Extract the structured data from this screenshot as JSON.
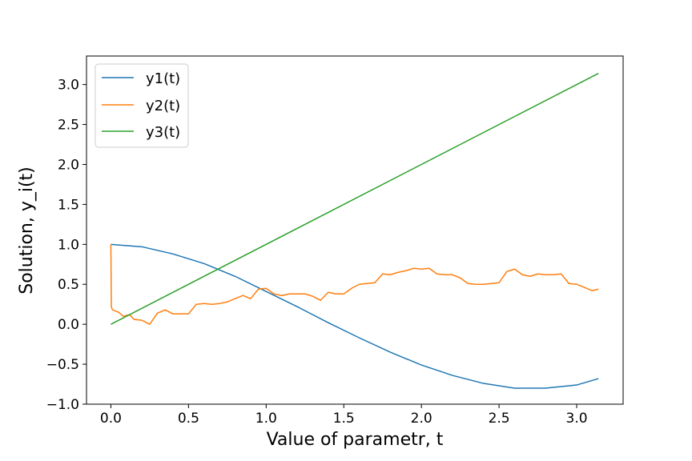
{
  "chart_data": {
    "type": "line",
    "title": "",
    "xlabel": "Value of parametr, t",
    "ylabel": "Solution, y_i(t)",
    "xlim": [
      -0.157,
      3.299
    ],
    "ylim": [
      -1.0,
      3.357
    ],
    "xticks": [
      0.0,
      0.5,
      1.0,
      1.5,
      2.0,
      2.5,
      3.0
    ],
    "xtick_labels": [
      "0.0",
      "0.5",
      "1.0",
      "1.5",
      "2.0",
      "2.5",
      "3.0"
    ],
    "yticks": [
      -1.0,
      -0.5,
      0.0,
      0.5,
      1.0,
      1.5,
      2.0,
      2.5,
      3.0
    ],
    "ytick_labels": [
      "−1.0",
      "−0.5",
      "0.0",
      "0.5",
      "1.0",
      "1.5",
      "2.0",
      "2.5",
      "3.0"
    ],
    "grid": false,
    "legend_position": "top-left",
    "series": [
      {
        "name": "y1(t)",
        "color": "#1f77b4",
        "x": [
          0.0,
          0.2,
          0.4,
          0.6,
          0.8,
          1.0,
          1.2,
          1.4,
          1.6,
          1.8,
          2.0,
          2.2,
          2.4,
          2.6,
          2.8,
          3.0,
          3.14
        ],
        "y": [
          1.0,
          0.97,
          0.88,
          0.76,
          0.6,
          0.41,
          0.22,
          0.02,
          -0.17,
          -0.35,
          -0.51,
          -0.64,
          -0.74,
          -0.8,
          -0.8,
          -0.76,
          -0.68
        ]
      },
      {
        "name": "y2(t)",
        "color": "#ff7f0e",
        "x": [
          0.0,
          0.003,
          0.01,
          0.05,
          0.08,
          0.12,
          0.15,
          0.2,
          0.25,
          0.3,
          0.35,
          0.4,
          0.45,
          0.5,
          0.55,
          0.6,
          0.65,
          0.7,
          0.75,
          0.8,
          0.85,
          0.9,
          0.95,
          1.0,
          1.05,
          1.1,
          1.15,
          1.2,
          1.25,
          1.3,
          1.35,
          1.4,
          1.45,
          1.5,
          1.55,
          1.6,
          1.65,
          1.7,
          1.75,
          1.8,
          1.85,
          1.9,
          1.95,
          2.0,
          2.05,
          2.1,
          2.15,
          2.2,
          2.25,
          2.3,
          2.35,
          2.4,
          2.45,
          2.5,
          2.55,
          2.6,
          2.65,
          2.7,
          2.75,
          2.8,
          2.85,
          2.9,
          2.95,
          3.0,
          3.05,
          3.1,
          3.14
        ],
        "y": [
          1.0,
          0.22,
          0.18,
          0.15,
          0.1,
          0.12,
          0.06,
          0.05,
          0.0,
          0.14,
          0.18,
          0.13,
          0.13,
          0.13,
          0.25,
          0.26,
          0.25,
          0.26,
          0.28,
          0.32,
          0.36,
          0.32,
          0.44,
          0.45,
          0.38,
          0.36,
          0.38,
          0.38,
          0.38,
          0.35,
          0.3,
          0.4,
          0.38,
          0.38,
          0.45,
          0.5,
          0.51,
          0.52,
          0.63,
          0.62,
          0.65,
          0.67,
          0.7,
          0.69,
          0.7,
          0.63,
          0.62,
          0.62,
          0.58,
          0.51,
          0.5,
          0.5,
          0.51,
          0.52,
          0.66,
          0.69,
          0.62,
          0.6,
          0.63,
          0.62,
          0.62,
          0.63,
          0.51,
          0.5,
          0.46,
          0.42,
          0.44
        ]
      },
      {
        "name": "y3(t)",
        "color": "#2ca02c",
        "x": [
          0.0,
          3.14
        ],
        "y": [
          0.0,
          3.14
        ]
      }
    ]
  }
}
